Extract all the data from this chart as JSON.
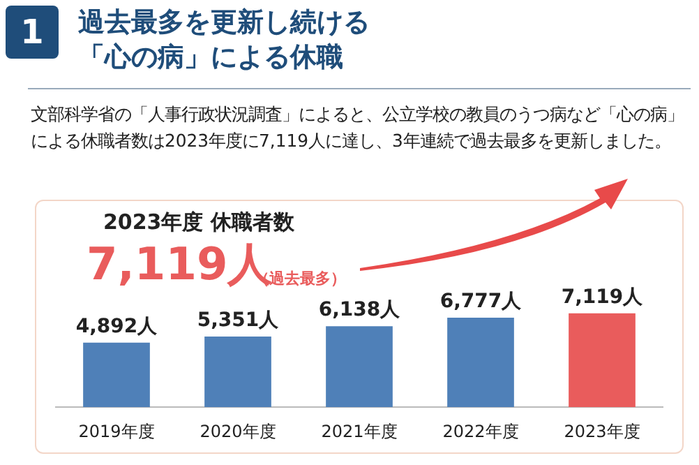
{
  "chart_data": {
    "type": "bar",
    "title": "過去最多を更新し続ける「心の病」による休職",
    "subtitle": "文部科学省の「人事行政状況調査」によると、公立学校の教員のうつ病など「心の病」による休職者数は2023年度に7,119人に達し、3年連続で過去最多を更新しました。",
    "annotations": [
      "1",
      "2023年度 休職者数",
      "7,119人",
      "（過去最多）"
    ],
    "categories": [
      "2019年度",
      "2020年度",
      "2021年度",
      "2022年度",
      "2023年度"
    ],
    "values": [
      4892,
      5351,
      6138,
      6777,
      7119
    ],
    "colors": [
      "#4f80b8",
      "#4f80b8",
      "#4f80b8",
      "#4f80b8",
      "#e95c5c"
    ],
    "value_labels": [
      "4,892人",
      "5,351人",
      "6,138人",
      "6,777人",
      "7,119人"
    ],
    "tick_labels": "x",
    "grid": false,
    "legend": false
  }
}
